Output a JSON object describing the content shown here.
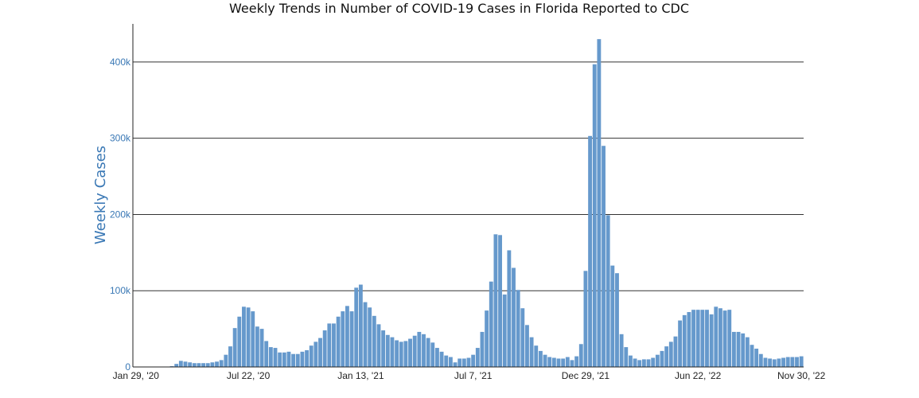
{
  "chart_data": {
    "type": "bar",
    "title": "Weekly Trends in Number of COVID-19 Cases in Florida Reported to CDC",
    "ylabel": "Weekly Cases",
    "xlabel": "",
    "x_start": "Jan 29, '20",
    "x_interval": "1 week",
    "ylim": [
      0,
      450000
    ],
    "grid": true,
    "bar_color": "#6699cc",
    "axis_label_color": "#3a78b5",
    "y_ticks": [
      {
        "value": 0,
        "label": "0"
      },
      {
        "value": 100000,
        "label": "100k"
      },
      {
        "value": 200000,
        "label": "200k"
      },
      {
        "value": 300000,
        "label": "300k"
      },
      {
        "value": 400000,
        "label": "400k"
      }
    ],
    "x_ticks": [
      {
        "index": 0,
        "label": "Jan 29, '20"
      },
      {
        "index": 25,
        "label": "Jul 22, '20"
      },
      {
        "index": 50,
        "label": "Jan 13, '21"
      },
      {
        "index": 75,
        "label": "Jul 7, '21"
      },
      {
        "index": 100,
        "label": "Dec 29, '21"
      },
      {
        "index": 125,
        "label": "Jun 22, '22"
      },
      {
        "index": 148,
        "label": "Nov 30, '22"
      }
    ],
    "values": [
      0,
      0,
      0,
      0,
      0,
      0,
      0,
      0,
      1000,
      4000,
      8000,
      7000,
      6000,
      5000,
      5000,
      5000,
      5000,
      6000,
      7000,
      9000,
      16000,
      27000,
      51000,
      66000,
      79000,
      78000,
      73000,
      53000,
      50000,
      34000,
      26000,
      25000,
      19000,
      19000,
      20000,
      17000,
      17000,
      20000,
      22000,
      28000,
      33000,
      38000,
      48000,
      57000,
      57000,
      66000,
      73000,
      80000,
      73000,
      104000,
      108000,
      85000,
      78000,
      67000,
      56000,
      48000,
      42000,
      39000,
      35000,
      33000,
      34000,
      37000,
      41000,
      46000,
      43000,
      38000,
      32000,
      25000,
      20000,
      15000,
      13000,
      6000,
      11000,
      11000,
      12000,
      16000,
      25000,
      46000,
      74000,
      112000,
      174000,
      173000,
      95000,
      153000,
      130000,
      101000,
      77000,
      55000,
      39000,
      28000,
      21000,
      16000,
      13000,
      12000,
      11000,
      11000,
      13000,
      9000,
      14000,
      30000,
      126000,
      303000,
      397000,
      430000,
      290000,
      199000,
      133000,
      123000,
      43000,
      26000,
      15000,
      11000,
      9000,
      10000,
      10000,
      12000,
      16000,
      21000,
      27000,
      33000,
      40000,
      61000,
      68000,
      72000,
      75000,
      75000,
      75000,
      75000,
      69000,
      79000,
      77000,
      74000,
      75000,
      46000,
      46000,
      44000,
      39000,
      29000,
      24000,
      17000,
      12000,
      11000,
      10000,
      11000,
      12000,
      13000,
      13000,
      13000,
      14000
    ]
  }
}
